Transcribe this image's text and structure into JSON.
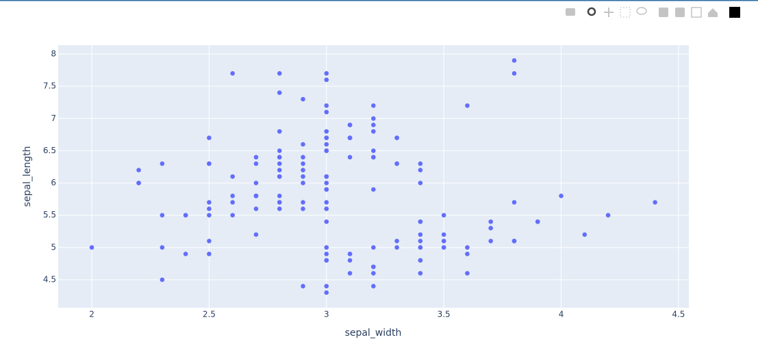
{
  "chart_data": {
    "type": "scatter",
    "color": "#636efa",
    "grid": true,
    "x_label": "sepal_width",
    "y_label": "sepal_length",
    "xlim": [
      1.857,
      4.544
    ],
    "ylim": [
      4.065,
      8.138
    ],
    "xticks": [
      2,
      2.5,
      3,
      3.5,
      4,
      4.5
    ],
    "yticks": [
      4.5,
      5,
      5.5,
      6,
      6.5,
      7,
      7.5,
      8
    ],
    "x": [
      3.5,
      3.0,
      3.2,
      3.1,
      3.6,
      3.9,
      3.4,
      3.4,
      2.9,
      3.1,
      3.7,
      3.4,
      3.0,
      3.0,
      4.0,
      4.4,
      3.9,
      3.5,
      3.8,
      3.8,
      3.4,
      3.7,
      3.6,
      3.3,
      3.4,
      3.0,
      3.4,
      3.5,
      3.4,
      3.2,
      3.1,
      3.4,
      4.1,
      4.2,
      3.1,
      3.2,
      3.5,
      3.6,
      3.0,
      3.4,
      3.5,
      2.3,
      3.2,
      3.5,
      3.8,
      3.0,
      3.8,
      3.2,
      3.7,
      3.3,
      3.2,
      3.2,
      3.1,
      2.3,
      2.8,
      2.8,
      3.3,
      2.4,
      2.9,
      2.7,
      2.0,
      3.0,
      2.2,
      2.9,
      2.9,
      3.1,
      3.0,
      2.7,
      2.2,
      2.5,
      3.2,
      2.8,
      2.5,
      2.8,
      2.9,
      3.0,
      2.8,
      3.0,
      2.9,
      2.6,
      2.4,
      2.4,
      2.7,
      2.7,
      3.0,
      3.4,
      3.1,
      2.3,
      3.0,
      2.5,
      2.6,
      3.0,
      2.6,
      2.3,
      2.7,
      3.0,
      2.9,
      2.9,
      2.5,
      2.8,
      3.3,
      2.7,
      3.0,
      2.9,
      3.0,
      3.0,
      2.5,
      2.9,
      2.5,
      3.6,
      3.2,
      2.7,
      3.0,
      2.5,
      2.8,
      3.2,
      3.0,
      3.8,
      2.6,
      2.2,
      3.2,
      2.8,
      2.8,
      2.7,
      3.3,
      3.2,
      2.8,
      3.0,
      2.8,
      3.0,
      2.8,
      3.8,
      2.8,
      2.8,
      2.6,
      3.0,
      3.4,
      3.1,
      3.0,
      3.1,
      3.1,
      3.1,
      2.7,
      3.2,
      3.3,
      3.0,
      2.5,
      3.0,
      3.4,
      3.0
    ],
    "values": [
      5.1,
      4.9,
      4.7,
      4.6,
      5.0,
      5.4,
      4.6,
      5.0,
      4.4,
      4.9,
      5.4,
      4.8,
      4.8,
      4.3,
      5.8,
      5.7,
      5.4,
      5.1,
      5.7,
      5.1,
      5.4,
      5.1,
      4.6,
      5.1,
      4.8,
      5.0,
      5.0,
      5.2,
      5.2,
      4.7,
      4.8,
      5.4,
      5.2,
      5.5,
      4.9,
      5.0,
      5.5,
      4.9,
      4.4,
      5.1,
      5.0,
      4.5,
      4.4,
      5.0,
      5.1,
      4.8,
      5.1,
      4.6,
      5.3,
      5.0,
      7.0,
      6.4,
      6.9,
      5.5,
      6.5,
      5.7,
      6.3,
      4.9,
      6.6,
      5.2,
      5.0,
      5.9,
      6.0,
      6.1,
      5.6,
      6.7,
      5.6,
      5.8,
      6.2,
      5.6,
      5.9,
      6.1,
      6.3,
      6.1,
      6.4,
      6.6,
      6.8,
      6.7,
      6.0,
      5.7,
      5.5,
      5.5,
      5.8,
      6.0,
      5.4,
      6.0,
      6.7,
      6.3,
      5.6,
      5.5,
      5.5,
      6.1,
      5.8,
      5.0,
      5.6,
      5.7,
      5.7,
      6.2,
      5.1,
      5.7,
      6.3,
      5.8,
      7.1,
      6.3,
      6.5,
      7.6,
      4.9,
      7.3,
      6.7,
      7.2,
      6.5,
      6.4,
      6.8,
      5.7,
      5.8,
      6.4,
      6.5,
      7.7,
      7.7,
      6.0,
      6.9,
      5.6,
      7.7,
      6.3,
      6.7,
      7.2,
      6.2,
      6.1,
      6.4,
      7.2,
      7.4,
      7.9,
      6.4,
      6.3,
      6.1,
      7.7,
      6.3,
      6.4,
      6.0,
      6.9,
      6.7,
      6.9,
      5.8,
      6.8,
      6.7,
      6.7,
      6.3,
      6.5,
      6.2,
      5.9
    ]
  }
}
